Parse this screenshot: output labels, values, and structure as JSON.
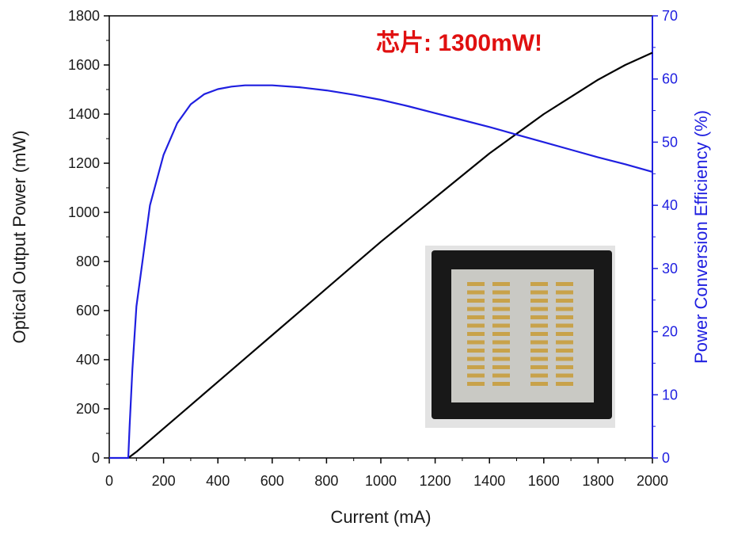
{
  "chart_data": {
    "type": "line",
    "title": "",
    "xlabel": "Current (mA)",
    "ylabel": "Optical Output Power (mW)",
    "y2label": "Power Conversion Efficiency (%)",
    "xlim": [
      0,
      2000
    ],
    "ylim": [
      0,
      1800
    ],
    "y2lim": [
      0,
      70
    ],
    "xticks": [
      "0",
      "200",
      "400",
      "600",
      "800",
      "1000",
      "1200",
      "1400",
      "1600",
      "1800",
      "2000"
    ],
    "yticks": [
      "0",
      "200",
      "400",
      "600",
      "800",
      "1000",
      "1200",
      "1400",
      "1600",
      "1800"
    ],
    "y2ticks": [
      "0",
      "10",
      "20",
      "30",
      "40",
      "50",
      "60",
      "70"
    ],
    "grid": false,
    "annotation": "芯片: 1300mW!",
    "series": [
      {
        "axis": "left",
        "color": "#000000",
        "x": [
          70,
          100,
          200,
          300,
          400,
          500,
          600,
          700,
          800,
          900,
          1000,
          1100,
          1200,
          1300,
          1400,
          1500,
          1600,
          1700,
          1800,
          1900,
          2000
        ],
        "y": [
          0,
          25,
          120,
          215,
          310,
          405,
          500,
          595,
          690,
          785,
          880,
          970,
          1060,
          1150,
          1240,
          1320,
          1400,
          1470,
          1540,
          1600,
          1650
        ]
      },
      {
        "axis": "right",
        "color": "#1f1fe0",
        "x": [
          0,
          70,
          75,
          85,
          100,
          125,
          150,
          200,
          250,
          300,
          350,
          400,
          450,
          500,
          550,
          600,
          700,
          800,
          900,
          1000,
          1100,
          1200,
          1300,
          1400,
          1500,
          1600,
          1700,
          1800,
          1900,
          2000
        ],
        "y": [
          0,
          0,
          5,
          14,
          24,
          32,
          40,
          48,
          53,
          56,
          57.6,
          58.4,
          58.8,
          59,
          59,
          59,
          58.7,
          58.2,
          57.5,
          56.7,
          55.7,
          54.6,
          53.5,
          52.4,
          51.2,
          50,
          48.8,
          47.6,
          46.5,
          45.3
        ]
      }
    ],
    "inset_image": "photo of laser chip array on square die"
  }
}
